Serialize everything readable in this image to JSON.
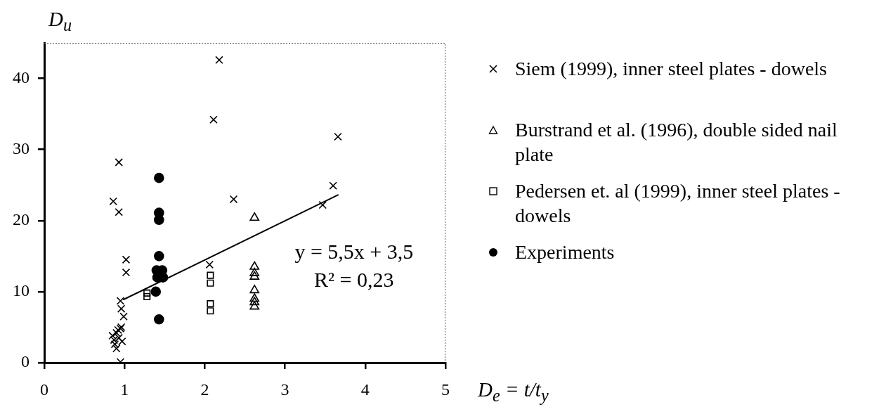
{
  "chart_data": {
    "type": "scatter",
    "xlabel": "D$_{e}$ = t/t$_{y}$",
    "ylabel": "D$_{u}$",
    "xlim": [
      0,
      5
    ],
    "xticks": [
      0,
      1,
      2,
      3,
      4,
      5
    ],
    "ylim": [
      0,
      45
    ],
    "yticks": [
      0,
      10,
      20,
      30,
      40
    ],
    "grid": false,
    "legend": "right",
    "annotations": [
      "y = 5,5x + 3,5",
      "R² = 0,23"
    ],
    "series": [
      {
        "name": "Siem (1999), inner steel plates - dowels",
        "color": "#000000",
        "marker": "cross",
        "x": [
          2.18,
          2.11,
          3.66,
          0.93,
          3.6,
          2.36,
          0.86,
          3.47,
          0.93,
          1.02,
          1.02,
          2.06,
          0.95,
          0.96,
          0.99,
          0.85,
          0.87,
          0.88,
          0.9,
          0.92,
          0.95,
          0.93,
          0.97,
          0.9,
          0.96,
          0.95
        ],
        "values": [
          42.6,
          34.2,
          31.8,
          28.2,
          24.9,
          23.0,
          22.7,
          22.2,
          21.2,
          14.5,
          12.7,
          13.8,
          8.7,
          7.6,
          6.5,
          3.8,
          3.2,
          2.6,
          2.0,
          4.6,
          4.8,
          3.5,
          3.0,
          4.2,
          5.0,
          0.1
        ]
      },
      {
        "name": "Burstrand et al. (1996), double sided nail plate",
        "color": "#000000",
        "marker": "triangle",
        "x": [
          2.62,
          2.62,
          2.62,
          2.62,
          2.62,
          2.62,
          2.62,
          2.62
        ],
        "values": [
          20.4,
          13.5,
          12.6,
          12.1,
          10.2,
          9.0,
          8.5,
          7.9
        ]
      },
      {
        "name": "Pedersen et. al (1999), inner steel plates - dowels",
        "color": "#000000",
        "marker": "square",
        "x": [
          1.28,
          1.28,
          2.07,
          2.07,
          2.07,
          2.07
        ],
        "values": [
          9.8,
          9.3,
          12.3,
          11.2,
          8.3,
          7.3
        ]
      },
      {
        "name": "Experiments",
        "color": "#000000",
        "marker": "circle",
        "x": [
          1.43,
          1.43,
          1.43,
          1.43,
          1.4,
          1.47,
          1.41,
          1.48,
          1.39,
          1.43
        ],
        "values": [
          26.0,
          21.1,
          20.1,
          15.0,
          13.0,
          13.0,
          12.0,
          12.0,
          10.0,
          6.1
        ]
      },
      {
        "type": "line",
        "color": "#000000",
        "marker": "none",
        "x": [
          0.99,
          3.66
        ],
        "values": [
          8.9,
          23.6
        ]
      }
    ]
  }
}
